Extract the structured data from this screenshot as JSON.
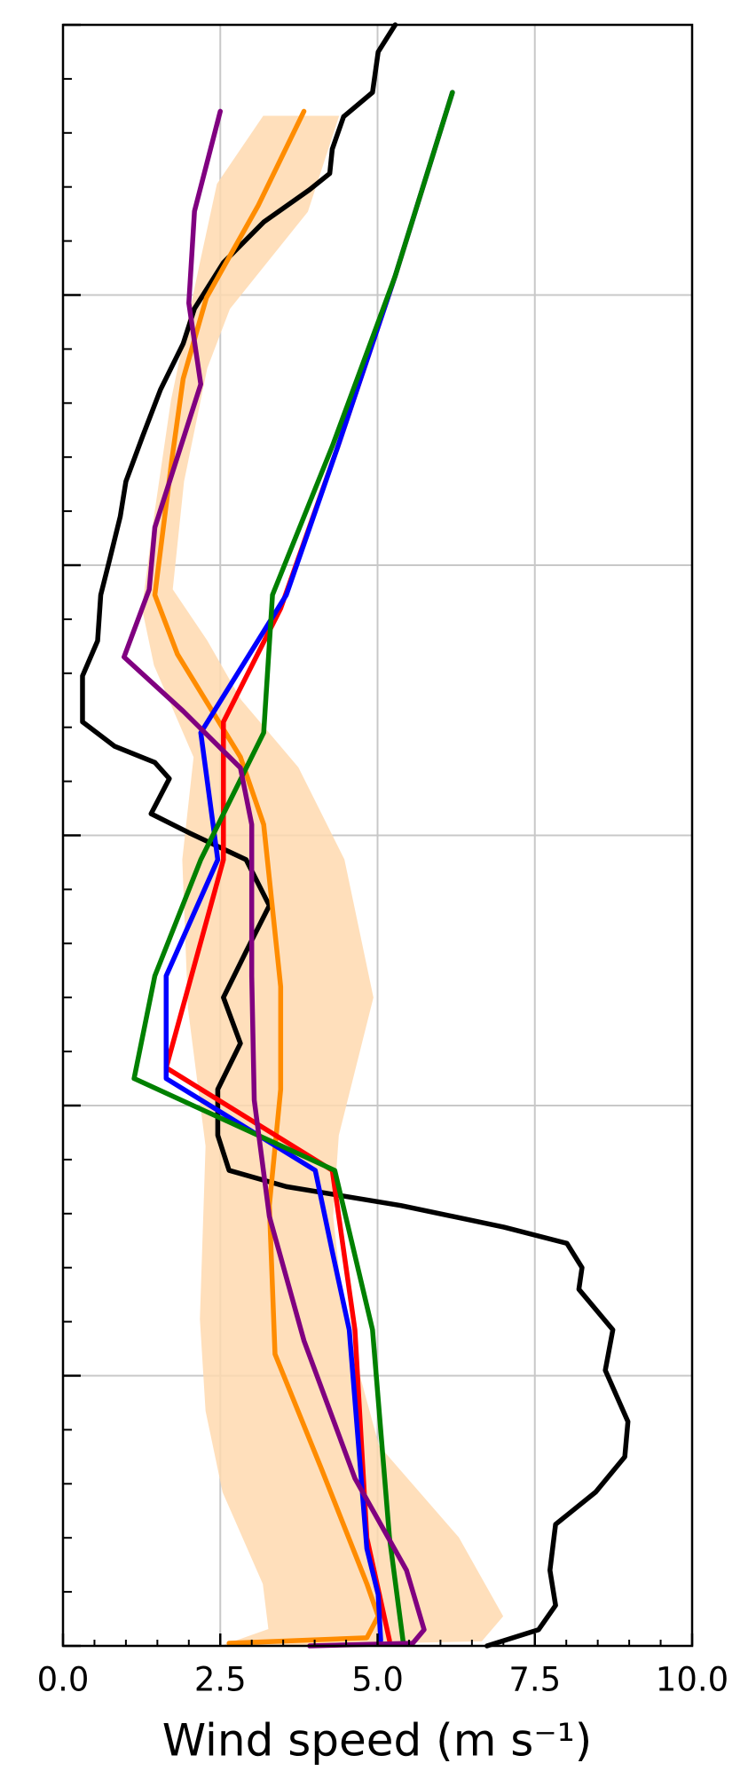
{
  "chart_data": {
    "type": "line",
    "x_label": "Wind speed (m s⁻¹)",
    "xlim": [
      0,
      10
    ],
    "xticks": [
      {
        "value": 0,
        "label": "0.0"
      },
      {
        "value": 2.5,
        "label": "2.5"
      },
      {
        "value": 5,
        "label": "5.0"
      },
      {
        "value": 7.5,
        "label": "7.5"
      },
      {
        "value": 10,
        "label": "10.0"
      }
    ],
    "ylim": [
      0,
      6
    ],
    "yticks": [
      0,
      1,
      2,
      3,
      4,
      5,
      6
    ],
    "grid": true,
    "band": {
      "color": "#ffdab0",
      "x": [
        4.37,
        3.88,
        2.64,
        2.28,
        1.91,
        1.73,
        2.28,
        2.82,
        3.73,
        4.46,
        4.92,
        4.37,
        4.28,
        4.46,
        5.01,
        6.28,
        6.98,
        6.65,
        2.55,
        3.28,
        3.19,
        2.55,
        2.28,
        2.19,
        2.28,
        2.0,
        1.91,
        2.09,
        1.46,
        1.27,
        1.46,
        1.73,
        2.19,
        2.46,
        3.19
      ],
      "y": [
        5.66,
        5.31,
        4.95,
        4.73,
        4.31,
        3.91,
        3.72,
        3.5,
        3.25,
        2.91,
        2.4,
        1.89,
        1.59,
        1.21,
        0.74,
        0.4,
        0.11,
        0.02,
        0,
        0.06,
        0.23,
        0.57,
        0.87,
        1.21,
        1.85,
        2.36,
        2.91,
        3.29,
        3.63,
        3.84,
        4.18,
        4.61,
        5.12,
        5.41,
        5.66
      ]
    },
    "lines": [
      {
        "color": "#000000",
        "x": [
          5.28,
          5.01,
          4.92,
          4.46,
          4.28,
          4.24,
          3.92,
          3.19,
          2.55,
          2.09,
          1.91,
          1.55,
          1.27,
          1.0,
          0.91,
          0.73,
          0.6,
          0.55,
          0.31,
          0.31,
          0.82,
          1.46,
          1.69,
          1.4,
          2.0,
          2.91,
          3.28,
          2.91,
          2.55,
          2.82,
          2.46,
          2.46,
          2.64,
          3.55,
          5.37,
          7.01,
          8.01,
          8.25,
          8.2,
          8.74,
          8.62,
          8.98,
          8.93,
          8.47,
          7.83,
          7.74,
          7.83,
          7.56,
          6.74
        ],
        "y": [
          6.0,
          5.9,
          5.75,
          5.66,
          5.54,
          5.45,
          5.39,
          5.27,
          5.12,
          4.95,
          4.82,
          4.65,
          4.48,
          4.31,
          4.18,
          4.01,
          3.89,
          3.72,
          3.59,
          3.42,
          3.33,
          3.27,
          3.21,
          3.08,
          3.01,
          2.91,
          2.74,
          2.57,
          2.4,
          2.23,
          2.06,
          1.89,
          1.76,
          1.7,
          1.63,
          1.55,
          1.49,
          1.4,
          1.32,
          1.17,
          1.02,
          0.83,
          0.7,
          0.57,
          0.45,
          0.28,
          0.15,
          0.06,
          0.0
        ]
      },
      {
        "color": "#ff8c00",
        "x": [
          3.83,
          3.1,
          2.28,
          1.91,
          1.73,
          1.46,
          1.82,
          2.82,
          3.19,
          3.46,
          3.46,
          3.28,
          3.37,
          4.1,
          4.83,
          5.01,
          4.83,
          2.64
        ],
        "y": [
          5.68,
          5.33,
          4.99,
          4.69,
          4.39,
          3.89,
          3.67,
          3.29,
          3.04,
          2.44,
          2.06,
          1.63,
          1.08,
          0.66,
          0.23,
          0.11,
          0.03,
          0.01
        ]
      },
      {
        "color": "#ff0000",
        "x": [
          6.19,
          5.28,
          4.37,
          3.46,
          2.55,
          2.55,
          1.64,
          4.28,
          4.64,
          4.83,
          5.19
        ],
        "y": [
          5.75,
          5.07,
          4.44,
          3.84,
          3.42,
          2.91,
          2.14,
          1.76,
          1.17,
          0.4,
          0.02
        ]
      },
      {
        "color": "#0000ff",
        "x": [
          6.19,
          5.28,
          4.37,
          3.55,
          2.19,
          2.46,
          1.64,
          1.64,
          4.01,
          4.28,
          4.55,
          4.83,
          5.01,
          5.05
        ],
        "y": [
          5.75,
          5.07,
          4.44,
          3.89,
          3.38,
          2.91,
          2.48,
          2.1,
          1.76,
          1.46,
          1.17,
          0.36,
          0.19,
          0.02
        ]
      },
      {
        "color": "#008000",
        "x": [
          6.19,
          5.28,
          4.28,
          3.33,
          3.19,
          2.19,
          1.46,
          1.13,
          4.32,
          4.92,
          5.19,
          5.41
        ],
        "y": [
          5.75,
          5.07,
          4.44,
          3.89,
          3.38,
          2.91,
          2.48,
          2.1,
          1.76,
          1.17,
          0.4,
          0.01
        ]
      },
      {
        "color": "#800080",
        "x": [
          2.5,
          2.09,
          2.0,
          2.19,
          1.46,
          1.37,
          0.97,
          1.91,
          2.82,
          3.0,
          3.0,
          3.04,
          3.28,
          3.83,
          4.64,
          5.46,
          5.74,
          5.56,
          3.92
        ],
        "y": [
          5.68,
          5.31,
          4.97,
          4.67,
          4.14,
          3.91,
          3.66,
          3.46,
          3.25,
          3.04,
          2.48,
          2.02,
          1.59,
          1.13,
          0.62,
          0.28,
          0.06,
          0.01,
          0
        ]
      }
    ]
  }
}
